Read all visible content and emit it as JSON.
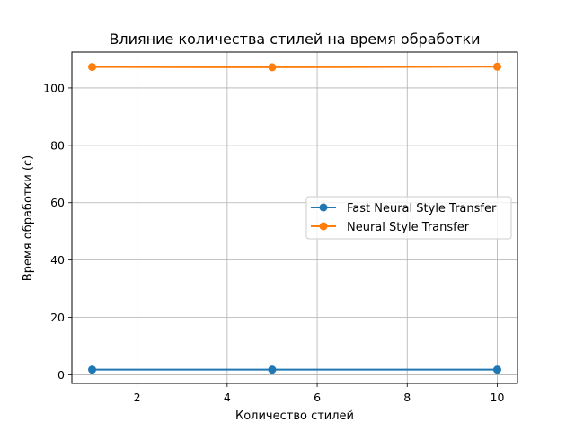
{
  "chart_data": {
    "type": "line",
    "title": "Влияние количества стилей на время обработки",
    "xlabel": "Количество стилей",
    "ylabel": "Время обработки (с)",
    "x": [
      1,
      5,
      10
    ],
    "xlim": [
      0.55,
      10.45
    ],
    "ylim": [
      -3.0,
      112.5
    ],
    "xticks": [
      2,
      4,
      6,
      8,
      10
    ],
    "yticks": [
      0,
      20,
      40,
      60,
      80,
      100
    ],
    "grid": true,
    "legend_position": "center-right",
    "series": [
      {
        "name": "Fast Neural Style Transfer",
        "values": [
          1.8,
          1.8,
          1.8
        ],
        "color": "#1f77b4"
      },
      {
        "name": "Neural Style Transfer",
        "values": [
          107.3,
          107.2,
          107.4
        ],
        "color": "#ff7f0e"
      }
    ]
  }
}
